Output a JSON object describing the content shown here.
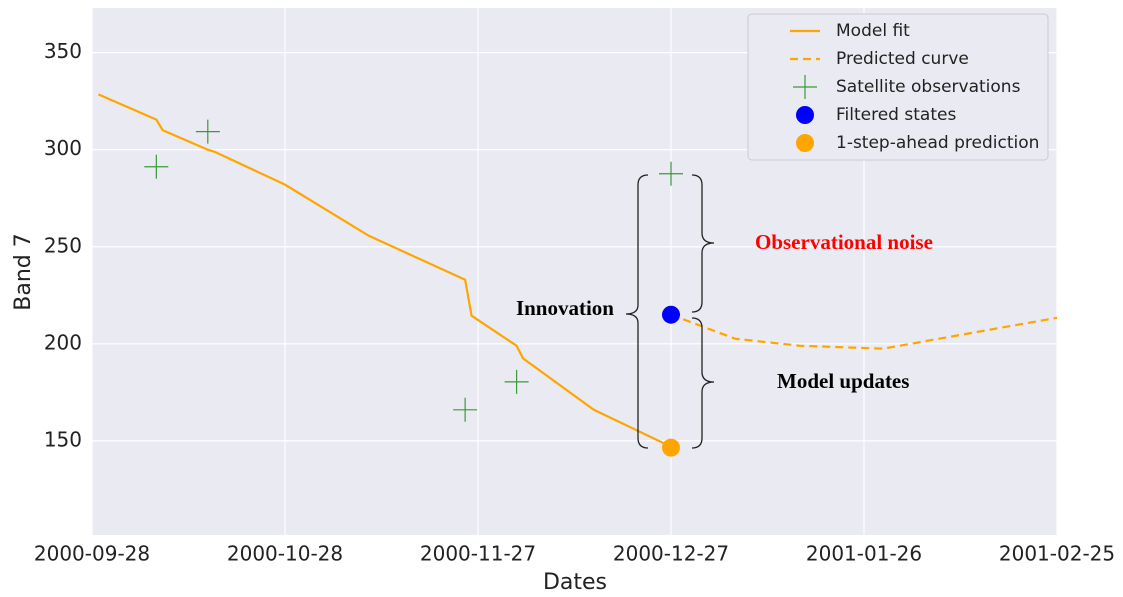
{
  "chart_data": {
    "type": "line",
    "xlabel": "Dates",
    "ylabel": "Band 7",
    "xlim": [
      "2000-09-28",
      "2001-02-25"
    ],
    "xticks": [
      "2000-09-28",
      "2000-10-28",
      "2000-11-27",
      "2000-12-27",
      "2001-01-26",
      "2001-02-25"
    ],
    "ylim": [
      101.5,
      373
    ],
    "yticks": [
      150,
      200,
      250,
      300,
      350
    ],
    "grid": true,
    "legend": "upper right",
    "series": [
      {
        "name": "Model fit",
        "kind": "line",
        "style": "solid",
        "color": "#ffa500",
        "x": [
          "2000-09-29",
          "2000-10-08",
          "2000-10-09",
          "2000-10-16",
          "2000-10-17",
          "2000-10-28",
          "2000-11-10",
          "2000-11-25",
          "2000-11-26",
          "2000-12-03",
          "2000-12-04",
          "2000-12-15",
          "2000-12-27"
        ],
        "values": [
          328.5,
          315.5,
          310,
          300,
          299,
          282,
          255.7,
          233,
          214.5,
          199,
          192.5,
          166,
          147
        ]
      },
      {
        "name": "Predicted curve",
        "kind": "line",
        "style": "dashed",
        "color": "#ffa500",
        "x": [
          "2000-12-27",
          "2001-01-06",
          "2001-01-16",
          "2001-01-29",
          "2001-02-10",
          "2001-02-25"
        ],
        "values": [
          215,
          202.6,
          199,
          197.5,
          204.6,
          213.4
        ]
      },
      {
        "name": "Satellite observations",
        "kind": "plus",
        "color": "#3a9a3a",
        "x": [
          "2000-10-08",
          "2000-10-16",
          "2000-11-25",
          "2000-12-03",
          "2000-12-27"
        ],
        "values": [
          291.2,
          309.3,
          166,
          180.4,
          287.6
        ]
      },
      {
        "name": "Filtered states",
        "kind": "dot",
        "color": "#0000ff",
        "x": [
          "2000-12-27"
        ],
        "values": [
          215
        ]
      },
      {
        "name": "1-step-ahead prediction",
        "kind": "dot",
        "color": "#ffa500",
        "x": [
          "2000-12-27"
        ],
        "values": [
          146.5
        ]
      }
    ],
    "annotations": [
      {
        "text": "Innovation",
        "color": "#000000"
      },
      {
        "text": "Observational noise",
        "color": "#ff0000"
      },
      {
        "text": "Model updates",
        "color": "#000000"
      }
    ]
  }
}
